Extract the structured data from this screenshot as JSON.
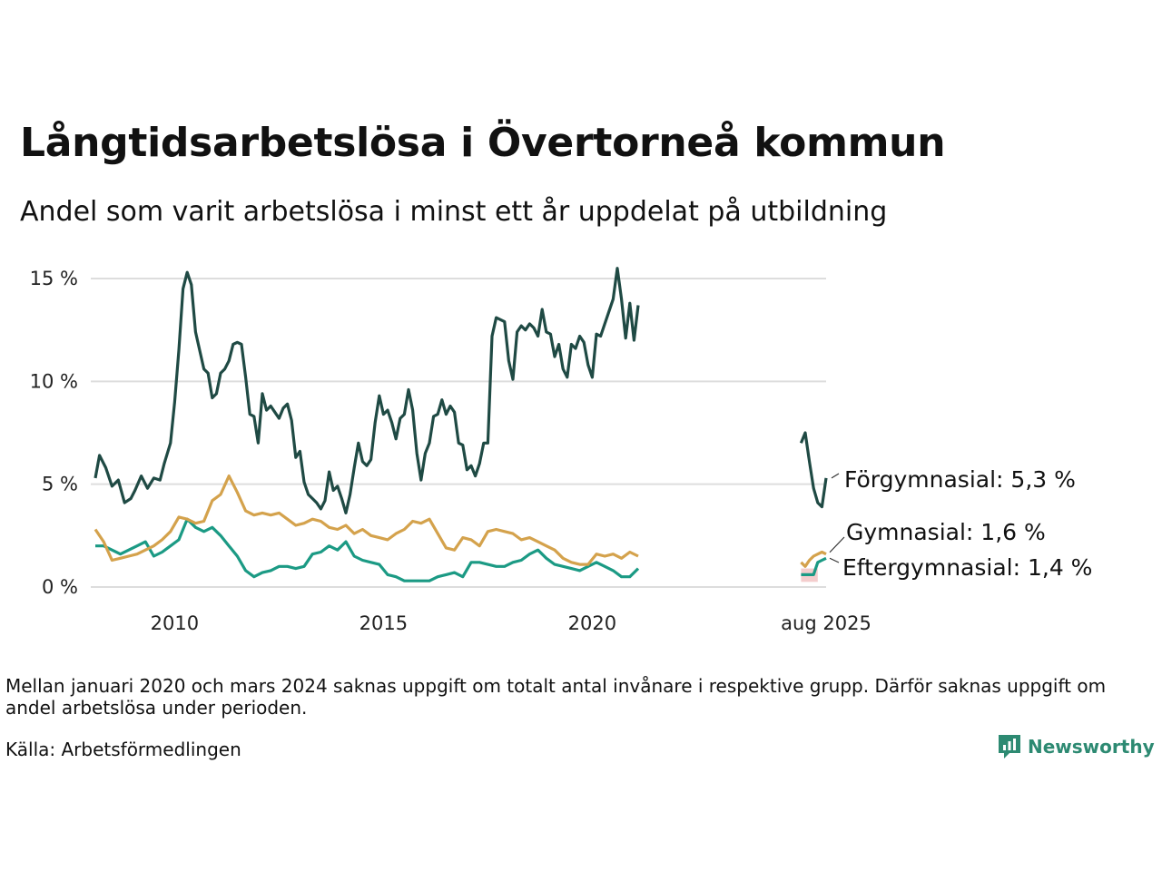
{
  "colors": {
    "forgymnasial": "#1f4a44",
    "gymnasial": "#d4a24c",
    "eftergymnasial": "#1b9a84",
    "grid": "#dddddd",
    "brand": "#2d8a72",
    "band": "#f0b8b8"
  },
  "footnote": "Mellan januari 2020 och mars 2024 saknas uppgift om totalt antal invånare i respektive grupp. Därför saknas uppgift om andel arbetslösa under perioden.",
  "source": "Källa: Arbetsförmedlingen",
  "logo": {
    "text": "Newsworthy",
    "icon": "newsworthy-logo-icon"
  },
  "chart_data": {
    "type": "line",
    "title": "Långtidsarbetslösa i Övertorneå kommun",
    "subtitle": "Andel som varit arbetslösa i minst ett år uppdelat på utbildning",
    "xlabel": "",
    "ylabel": "",
    "ylim": [
      0,
      15.5
    ],
    "yticks": [
      0,
      5,
      10,
      15
    ],
    "ytick_labels": [
      "0 %",
      "5 %",
      "10 %",
      "15 %"
    ],
    "xticks": [
      2010,
      2015,
      2020,
      2025.6
    ],
    "xtick_labels": [
      "2010",
      "2015",
      "2020",
      "aug 2025"
    ],
    "grid": true,
    "missing_period": "2020-01 – 2024-03",
    "series": [
      {
        "name": "Förgymnasial",
        "end_label": "Förgymnasial: 5,3 %",
        "segments": [
          {
            "x": [
              2008.1,
              2008.2,
              2008.35,
              2008.5,
              2008.65,
              2008.8,
              2008.95,
              2009.05,
              2009.2,
              2009.35,
              2009.5,
              2009.65,
              2009.75,
              2009.9,
              2010.0,
              2010.1,
              2010.2,
              2010.3,
              2010.4,
              2010.5,
              2010.6,
              2010.7,
              2010.8,
              2010.9,
              2011.0,
              2011.1,
              2011.2,
              2011.3,
              2011.4,
              2011.5,
              2011.6,
              2011.7,
              2011.8,
              2011.9,
              2012.0,
              2012.1,
              2012.2,
              2012.3,
              2012.4,
              2012.5,
              2012.6,
              2012.7,
              2012.8,
              2012.9,
              2013.0,
              2013.1,
              2013.2,
              2013.3,
              2013.4,
              2013.5,
              2013.6,
              2013.7,
              2013.8,
              2013.9,
              2014.0,
              2014.1,
              2014.2,
              2014.3,
              2014.4,
              2014.5,
              2014.6,
              2014.7,
              2014.8,
              2014.9,
              2015.0,
              2015.1,
              2015.2,
              2015.3,
              2015.4,
              2015.5,
              2015.6,
              2015.7,
              2015.8,
              2015.9,
              2016.0,
              2016.1,
              2016.2,
              2016.3,
              2016.4,
              2016.5,
              2016.6,
              2016.7,
              2016.8,
              2016.9,
              2017.0,
              2017.1,
              2017.2,
              2017.3,
              2017.4,
              2017.5,
              2017.6,
              2017.7,
              2017.8,
              2017.9,
              2018.0,
              2018.1,
              2018.2,
              2018.3,
              2018.4,
              2018.5,
              2018.6,
              2018.7,
              2018.8,
              2018.9,
              2019.0,
              2019.1,
              2019.2,
              2019.3,
              2019.4,
              2019.5,
              2019.6,
              2019.7,
              2019.8,
              2019.9,
              2020.0,
              2020.1,
              2020.2,
              2020.3,
              2020.4,
              2020.5,
              2020.6,
              2020.7,
              2020.8,
              2020.9,
              2021.0,
              2021.1
            ],
            "y": [
              5.3,
              6.4,
              5.8,
              4.9,
              5.2,
              4.1,
              4.3,
              4.7,
              5.4,
              4.8,
              5.3,
              5.2,
              6.0,
              7.0,
              9.0,
              11.5,
              14.5,
              15.3,
              14.7,
              12.4,
              11.5,
              10.6,
              10.4,
              9.2,
              9.4,
              10.4,
              10.6,
              11.0,
              11.8,
              11.9,
              11.8,
              10.2,
              8.4,
              8.3,
              7.0,
              9.4,
              8.6,
              8.8,
              8.5,
              8.2,
              8.7,
              8.9,
              8.1,
              6.3,
              6.6,
              5.1,
              4.5,
              4.3,
              4.1,
              3.8,
              4.2,
              5.6,
              4.7,
              4.9,
              4.3,
              3.6,
              4.5,
              5.8,
              7.0,
              6.1,
              5.9,
              6.2,
              8.0,
              9.3,
              8.4,
              8.6,
              8.0,
              7.2,
              8.2,
              8.4,
              9.6,
              8.6,
              6.5,
              5.2,
              6.5,
              7.0,
              8.3,
              8.4,
              9.1,
              8.4,
              8.8,
              8.5,
              7.0,
              6.9,
              5.7,
              5.9,
              5.4,
              6.0,
              7.0,
              7.0,
              12.2,
              13.1,
              13.0,
              12.9,
              11.0,
              10.1,
              12.4,
              12.7,
              12.5,
              12.8,
              12.6,
              12.2,
              13.5,
              12.4,
              12.3,
              11.2,
              11.8,
              10.6,
              10.2,
              11.8,
              11.6,
              12.2,
              11.9,
              10.8,
              10.2,
              12.3,
              12.2,
              12.8,
              13.4,
              14.0,
              15.5,
              14.0,
              12.1,
              13.8,
              12.0,
              13.7
            ]
          },
          {
            "x": [
              2025.0,
              2025.1,
              2025.2,
              2025.3,
              2025.4,
              2025.5,
              2025.6
            ],
            "y": [
              7.0,
              7.5,
              6.1,
              4.8,
              4.1,
              3.9,
              5.3
            ]
          }
        ]
      },
      {
        "name": "Gymnasial",
        "end_label": "Gymnasial: 1,6 %",
        "segments": [
          {
            "x": [
              2008.1,
              2008.3,
              2008.5,
              2008.7,
              2008.9,
              2009.1,
              2009.3,
              2009.5,
              2009.7,
              2009.9,
              2010.1,
              2010.3,
              2010.5,
              2010.7,
              2010.9,
              2011.1,
              2011.3,
              2011.5,
              2011.7,
              2011.9,
              2012.1,
              2012.3,
              2012.5,
              2012.7,
              2012.9,
              2013.1,
              2013.3,
              2013.5,
              2013.7,
              2013.9,
              2014.1,
              2014.3,
              2014.5,
              2014.7,
              2014.9,
              2015.1,
              2015.3,
              2015.5,
              2015.7,
              2015.9,
              2016.1,
              2016.3,
              2016.5,
              2016.7,
              2016.9,
              2017.1,
              2017.3,
              2017.5,
              2017.7,
              2017.9,
              2018.1,
              2018.3,
              2018.5,
              2018.7,
              2018.9,
              2019.1,
              2019.3,
              2019.5,
              2019.7,
              2019.9,
              2020.1,
              2020.3,
              2020.5,
              2020.7,
              2020.9,
              2021.1
            ],
            "y": [
              2.8,
              2.2,
              1.3,
              1.4,
              1.5,
              1.6,
              1.8,
              2.0,
              2.3,
              2.7,
              3.4,
              3.3,
              3.1,
              3.2,
              4.2,
              4.5,
              5.4,
              4.6,
              3.7,
              3.5,
              3.6,
              3.5,
              3.6,
              3.3,
              3.0,
              3.1,
              3.3,
              3.2,
              2.9,
              2.8,
              3.0,
              2.6,
              2.8,
              2.5,
              2.4,
              2.3,
              2.6,
              2.8,
              3.2,
              3.1,
              3.3,
              2.6,
              1.9,
              1.8,
              2.4,
              2.3,
              2.0,
              2.7,
              2.8,
              2.7,
              2.6,
              2.3,
              2.4,
              2.2,
              2.0,
              1.8,
              1.4,
              1.2,
              1.1,
              1.1,
              1.6,
              1.5,
              1.6,
              1.4,
              1.7,
              1.5
            ]
          },
          {
            "x": [
              2025.0,
              2025.1,
              2025.2,
              2025.3,
              2025.4,
              2025.5,
              2025.6
            ],
            "y": [
              1.2,
              1.0,
              1.3,
              1.5,
              1.6,
              1.7,
              1.6
            ]
          }
        ]
      },
      {
        "name": "Eftergymnasial",
        "end_label": "Eftergymnasial: 1,4 %",
        "segments": [
          {
            "x": [
              2008.1,
              2008.3,
              2008.5,
              2008.7,
              2008.9,
              2009.1,
              2009.3,
              2009.5,
              2009.7,
              2009.9,
              2010.1,
              2010.3,
              2010.5,
              2010.7,
              2010.9,
              2011.1,
              2011.3,
              2011.5,
              2011.7,
              2011.9,
              2012.1,
              2012.3,
              2012.5,
              2012.7,
              2012.9,
              2013.1,
              2013.3,
              2013.5,
              2013.7,
              2013.9,
              2014.1,
              2014.3,
              2014.5,
              2014.7,
              2014.9,
              2015.1,
              2015.3,
              2015.5,
              2015.7,
              2015.9,
              2016.1,
              2016.3,
              2016.5,
              2016.7,
              2016.9,
              2017.1,
              2017.3,
              2017.5,
              2017.7,
              2017.9,
              2018.1,
              2018.3,
              2018.5,
              2018.7,
              2018.9,
              2019.1,
              2019.3,
              2019.5,
              2019.7,
              2019.9,
              2020.1,
              2020.3,
              2020.5,
              2020.7,
              2020.9,
              2021.1
            ],
            "y": [
              2.0,
              2.0,
              1.8,
              1.6,
              1.8,
              2.0,
              2.2,
              1.5,
              1.7,
              2.0,
              2.3,
              3.3,
              2.9,
              2.7,
              2.9,
              2.5,
              2.0,
              1.5,
              0.8,
              0.5,
              0.7,
              0.8,
              1.0,
              1.0,
              0.9,
              1.0,
              1.6,
              1.7,
              2.0,
              1.8,
              2.2,
              1.5,
              1.3,
              1.2,
              1.1,
              0.6,
              0.5,
              0.3,
              0.3,
              0.3,
              0.3,
              0.5,
              0.6,
              0.7,
              0.5,
              1.2,
              1.2,
              1.1,
              1.0,
              1.0,
              1.2,
              1.3,
              1.6,
              1.8,
              1.4,
              1.1,
              1.0,
              0.9,
              0.8,
              1.0,
              1.2,
              1.0,
              0.8,
              0.5,
              0.5,
              0.9
            ]
          },
          {
            "x": [
              2025.0,
              2025.1,
              2025.2,
              2025.3,
              2025.4,
              2025.5,
              2025.6
            ],
            "y": [
              0.6,
              0.6,
              0.6,
              0.6,
              1.2,
              1.3,
              1.4
            ]
          }
        ]
      }
    ]
  }
}
